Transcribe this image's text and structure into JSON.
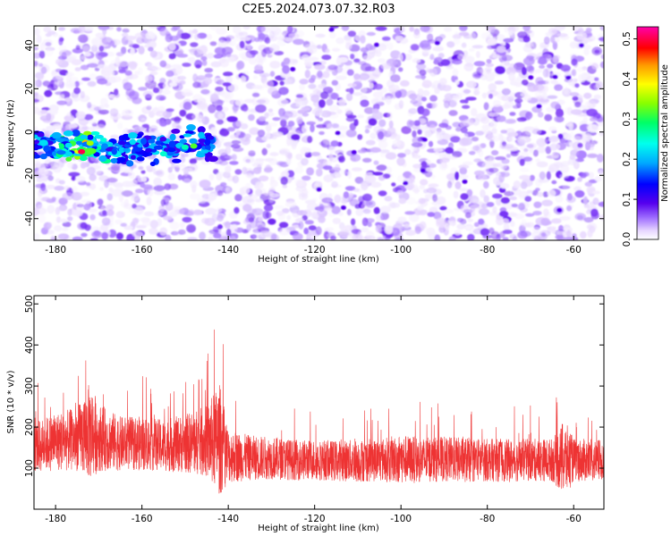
{
  "title": "C2E5.2024.073.07.32.R03",
  "colors": {
    "snr_line": "#ee3333",
    "noise_purple": "#8a2be2",
    "frame": "#000000"
  },
  "chart_data": [
    {
      "type": "heatmap",
      "xlabel": "Height of straight line (km)",
      "ylabel": "Frequency (Hz)",
      "xlim": [
        -185,
        -53
      ],
      "ylim": [
        -50,
        49
      ],
      "xticks": [
        -180,
        -160,
        -140,
        -120,
        -100,
        -80,
        -60
      ],
      "yticks": [
        -40,
        -20,
        0,
        20,
        40
      ],
      "colorbar": {
        "label": "Normalized spectral amplitude",
        "range": [
          0.0,
          0.53
        ],
        "ticks": [
          0.0,
          0.1,
          0.2,
          0.3,
          0.4,
          0.5
        ],
        "colormap": "rainbow-to-white"
      },
      "features": [
        {
          "description": "meteor echo band",
          "x_range": [
            -185,
            -143
          ],
          "frequency_hz": -7,
          "peak_amplitude": 0.5,
          "peak_x": -174
        },
        {
          "description": "background noise blobs",
          "x_range": [
            -185,
            -53
          ],
          "frequency_range": [
            -50,
            49
          ],
          "typical_amplitude": 0.05
        }
      ]
    },
    {
      "type": "line",
      "xlabel": "Height of straight line (km)",
      "ylabel": "SNR (10 * v/v)",
      "xlim": [
        -185,
        -53
      ],
      "ylim": [
        0,
        520
      ],
      "xticks": [
        -180,
        -160,
        -140,
        -120,
        -100,
        -80,
        -60
      ],
      "yticks": [
        100,
        200,
        300,
        400,
        500
      ],
      "series": [
        {
          "color": "#ee3333",
          "x": [
            -185,
            -180,
            -175,
            -172,
            -170,
            -165,
            -160,
            -155,
            -150,
            -145,
            -142,
            -140,
            -135,
            -130,
            -125,
            -120,
            -115,
            -110,
            -105,
            -100,
            -95,
            -90,
            -85,
            -80,
            -75,
            -70,
            -65,
            -62,
            -60,
            -55,
            -53
          ],
          "mean": [
            150,
            165,
            170,
            190,
            175,
            160,
            160,
            155,
            160,
            165,
            170,
            130,
            125,
            125,
            120,
            120,
            118,
            118,
            120,
            122,
            120,
            122,
            120,
            120,
            118,
            120,
            120,
            122,
            120,
            118,
            118
          ],
          "spread": [
            110,
            130,
            140,
            220,
            150,
            120,
            120,
            115,
            130,
            160,
            250,
            120,
            100,
            95,
            90,
            90,
            90,
            95,
            95,
            110,
            100,
            100,
            100,
            95,
            95,
            95,
            95,
            170,
            95,
            95,
            90
          ]
        }
      ]
    }
  ]
}
